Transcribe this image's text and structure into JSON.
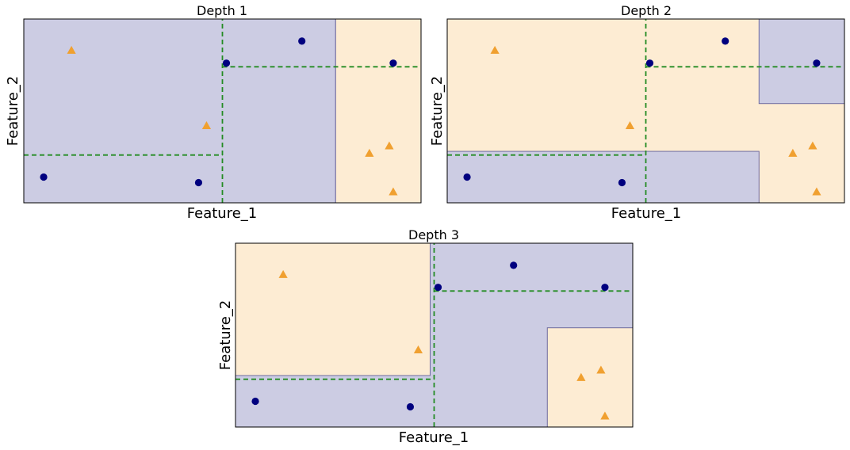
{
  "colors": {
    "class_a_region": "#cccce3",
    "class_b_region": "#fdecd3",
    "class_a_point": "#00007f",
    "class_b_point": "#f0a030",
    "split_line": "#228b22",
    "region_border": "#6d6a9e"
  },
  "chart_data": [
    {
      "type": "scatter",
      "title": "Depth 1",
      "xlabel": "Feature_1",
      "ylabel": "Feature_2",
      "xlim": [
        0,
        10
      ],
      "ylim": [
        0,
        10
      ],
      "ticks_shown": false,
      "grid": false,
      "series": [
        {
          "marker": "circle",
          "color": "#00007f",
          "points": [
            [
              0.5,
              1.4
            ],
            [
              4.4,
              1.1
            ],
            [
              5.1,
              7.6
            ],
            [
              7.0,
              8.8
            ],
            [
              9.3,
              7.6
            ]
          ]
        },
        {
          "marker": "triangle",
          "color": "#f0a030",
          "points": [
            [
              1.2,
              8.3
            ],
            [
              4.6,
              4.2
            ],
            [
              8.7,
              2.7
            ],
            [
              9.2,
              3.1
            ],
            [
              9.3,
              0.6
            ]
          ]
        }
      ],
      "regions": [
        {
          "class": "a",
          "x": [
            0,
            7.85
          ],
          "y": [
            0,
            10
          ]
        },
        {
          "class": "b",
          "x": [
            7.85,
            10
          ],
          "y": [
            0,
            10
          ]
        }
      ],
      "split_lines": [
        {
          "orientation": "vertical",
          "at": 5.0,
          "range": [
            0,
            10
          ]
        },
        {
          "orientation": "horizontal",
          "at": 2.6,
          "range": [
            0,
            5.0
          ]
        },
        {
          "orientation": "horizontal",
          "at": 7.4,
          "range": [
            5.0,
            10
          ]
        }
      ]
    },
    {
      "type": "scatter",
      "title": "Depth 2",
      "xlabel": "Feature_1",
      "ylabel": "Feature_2",
      "xlim": [
        0,
        10
      ],
      "ylim": [
        0,
        10
      ],
      "ticks_shown": false,
      "grid": false,
      "series": [
        {
          "marker": "circle",
          "color": "#00007f",
          "points": [
            [
              0.5,
              1.4
            ],
            [
              4.4,
              1.1
            ],
            [
              5.1,
              7.6
            ],
            [
              7.0,
              8.8
            ],
            [
              9.3,
              7.6
            ]
          ]
        },
        {
          "marker": "triangle",
          "color": "#f0a030",
          "points": [
            [
              1.2,
              8.3
            ],
            [
              4.6,
              4.2
            ],
            [
              8.7,
              2.7
            ],
            [
              9.2,
              3.1
            ],
            [
              9.3,
              0.6
            ]
          ]
        }
      ],
      "regions": [
        {
          "class": "b",
          "x": [
            0,
            10
          ],
          "y": [
            0,
            10
          ]
        },
        {
          "class": "a",
          "x": [
            0,
            7.85
          ],
          "y": [
            0,
            2.8
          ]
        },
        {
          "class": "a",
          "x": [
            7.85,
            10
          ],
          "y": [
            5.4,
            10
          ]
        }
      ],
      "split_lines": [
        {
          "orientation": "vertical",
          "at": 5.0,
          "range": [
            0,
            10
          ]
        },
        {
          "orientation": "horizontal",
          "at": 2.6,
          "range": [
            0,
            5.0
          ]
        },
        {
          "orientation": "horizontal",
          "at": 7.4,
          "range": [
            5.0,
            10
          ]
        }
      ]
    },
    {
      "type": "scatter",
      "title": "Depth 3",
      "xlabel": "Feature_1",
      "ylabel": "Feature_2",
      "xlim": [
        0,
        10
      ],
      "ylim": [
        0,
        10
      ],
      "ticks_shown": false,
      "grid": false,
      "series": [
        {
          "marker": "circle",
          "color": "#00007f",
          "points": [
            [
              0.5,
              1.4
            ],
            [
              4.4,
              1.1
            ],
            [
              5.1,
              7.6
            ],
            [
              7.0,
              8.8
            ],
            [
              9.3,
              7.6
            ]
          ]
        },
        {
          "marker": "triangle",
          "color": "#f0a030",
          "points": [
            [
              1.2,
              8.3
            ],
            [
              4.6,
              4.2
            ],
            [
              8.7,
              2.7
            ],
            [
              9.2,
              3.1
            ],
            [
              9.3,
              0.6
            ]
          ]
        }
      ],
      "regions": [
        {
          "class": "a",
          "x": [
            0,
            10
          ],
          "y": [
            0,
            10
          ]
        },
        {
          "class": "b",
          "x": [
            0,
            4.9
          ],
          "y": [
            2.8,
            10
          ]
        },
        {
          "class": "b",
          "x": [
            7.85,
            10
          ],
          "y": [
            0,
            5.4
          ]
        }
      ],
      "split_lines": [
        {
          "orientation": "vertical",
          "at": 5.0,
          "range": [
            0,
            10
          ]
        },
        {
          "orientation": "horizontal",
          "at": 2.6,
          "range": [
            0,
            5.0
          ]
        },
        {
          "orientation": "horizontal",
          "at": 7.4,
          "range": [
            5.0,
            10
          ]
        }
      ]
    }
  ]
}
